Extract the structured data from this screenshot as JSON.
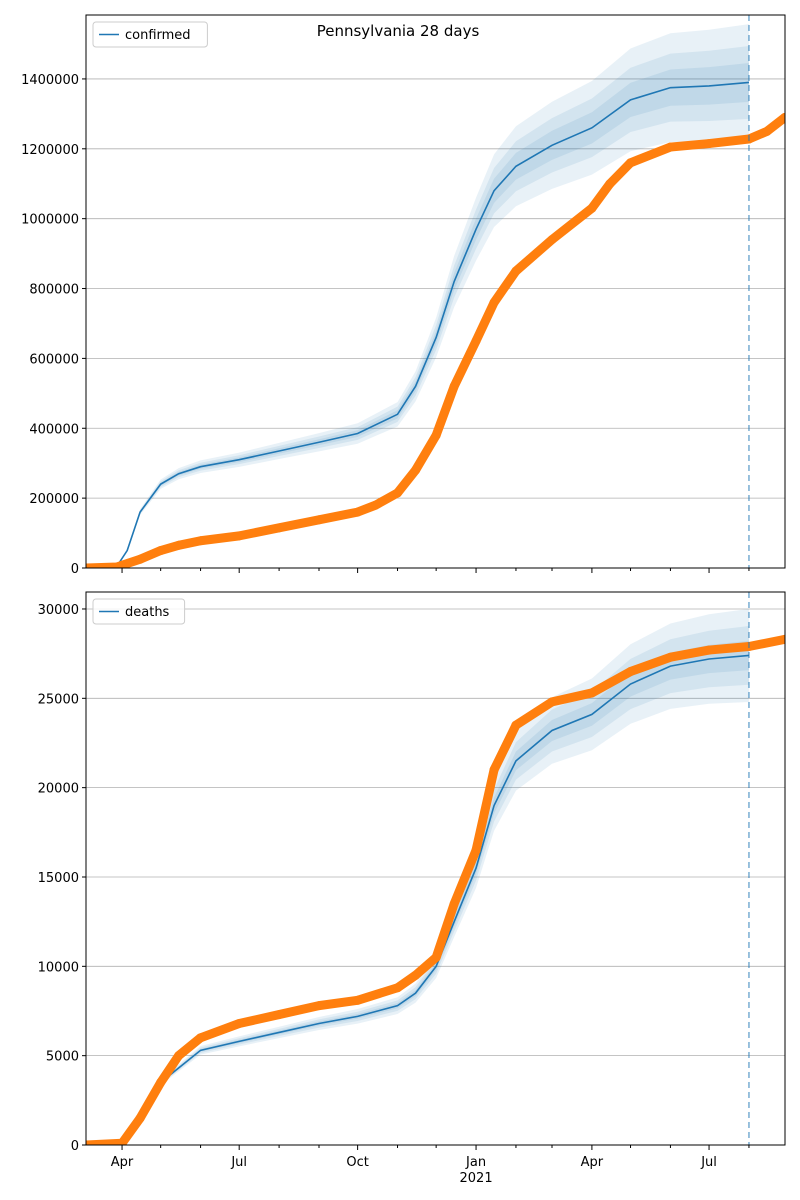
{
  "chart_data": [
    {
      "type": "line",
      "title": "Pennsylvania 28 days",
      "legend": {
        "label": "confirmed",
        "placement": "top-left"
      },
      "xlim": [
        "2020-03-04",
        "2021-08-29"
      ],
      "ylim": [
        0,
        1583000
      ],
      "yticks": [
        0,
        200000,
        400000,
        600000,
        800000,
        1000000,
        1200000,
        1400000
      ],
      "grid": "y",
      "forecast_date": "2021-08-01",
      "model_mean": {
        "x": [
          "2020-03-04",
          "2020-03-28",
          "2020-04-05",
          "2020-04-15",
          "2020-05-01",
          "2020-05-15",
          "2020-06-01",
          "2020-07-01",
          "2020-08-01",
          "2020-09-01",
          "2020-10-01",
          "2020-11-01",
          "2020-11-15",
          "2020-12-01",
          "2020-12-15",
          "2021-01-01",
          "2021-01-15",
          "2021-02-01",
          "2021-03-01",
          "2021-04-01",
          "2021-05-01",
          "2021-06-01",
          "2021-07-01",
          "2021-08-01"
        ],
        "y": [
          0,
          5000,
          50000,
          160000,
          240000,
          270000,
          290000,
          310000,
          335000,
          360000,
          385000,
          440000,
          520000,
          660000,
          820000,
          970000,
          1080000,
          1150000,
          1210000,
          1260000,
          1340000,
          1375000,
          1380000,
          1390000
        ]
      },
      "band_rel": [
        0.04,
        0.075,
        0.12
      ],
      "observed": {
        "x": [
          "2020-03-04",
          "2020-03-28",
          "2020-04-01",
          "2020-04-15",
          "2020-05-01",
          "2020-05-15",
          "2020-06-01",
          "2020-07-01",
          "2020-08-01",
          "2020-09-01",
          "2020-10-01",
          "2020-10-15",
          "2020-11-01",
          "2020-11-15",
          "2020-12-01",
          "2020-12-15",
          "2021-01-01",
          "2021-01-15",
          "2021-02-01",
          "2021-03-01",
          "2021-04-01",
          "2021-04-15",
          "2021-05-01",
          "2021-06-01",
          "2021-07-01",
          "2021-08-01",
          "2021-08-15",
          "2021-08-29"
        ],
        "y": [
          0,
          3000,
          8000,
          25000,
          50000,
          65000,
          78000,
          92000,
          115000,
          138000,
          160000,
          180000,
          215000,
          280000,
          380000,
          520000,
          650000,
          760000,
          850000,
          940000,
          1030000,
          1100000,
          1160000,
          1205000,
          1215000,
          1228000,
          1250000,
          1290000
        ]
      }
    },
    {
      "type": "line",
      "legend": {
        "label": "deaths",
        "placement": "top-left"
      },
      "xlim": [
        "2020-03-04",
        "2021-08-29"
      ],
      "ylim": [
        0,
        30950
      ],
      "yticks": [
        0,
        5000,
        10000,
        15000,
        20000,
        25000,
        30000
      ],
      "grid": "y",
      "forecast_date": "2021-08-01",
      "xticks": [
        {
          "date": "2020-04-01",
          "label": "Apr"
        },
        {
          "date": "2020-07-01",
          "label": "Jul"
        },
        {
          "date": "2020-10-01",
          "label": "Oct"
        },
        {
          "date": "2021-01-01",
          "label": "Jan",
          "sub": "2021"
        },
        {
          "date": "2021-04-01",
          "label": "Apr"
        },
        {
          "date": "2021-07-01",
          "label": "Jul"
        }
      ],
      "model_mean": {
        "x": [
          "2020-03-04",
          "2020-04-01",
          "2020-04-15",
          "2020-05-01",
          "2020-06-01",
          "2020-07-01",
          "2020-08-01",
          "2020-09-01",
          "2020-10-01",
          "2020-11-01",
          "2020-11-15",
          "2020-12-01",
          "2020-12-15",
          "2021-01-01",
          "2021-01-15",
          "2021-02-01",
          "2021-03-01",
          "2021-04-01",
          "2021-05-01",
          "2021-06-01",
          "2021-07-01",
          "2021-08-01"
        ],
        "y": [
          0,
          50,
          1500,
          3500,
          5300,
          5800,
          6300,
          6800,
          7200,
          7800,
          8500,
          10000,
          12500,
          15500,
          19000,
          21500,
          23200,
          24100,
          25800,
          26800,
          27200,
          27400
        ]
      },
      "band_rel": [
        0.03,
        0.06,
        0.095
      ],
      "observed": {
        "x": [
          "2020-03-04",
          "2020-04-01",
          "2020-04-15",
          "2020-05-01",
          "2020-05-15",
          "2020-06-01",
          "2020-07-01",
          "2020-08-01",
          "2020-09-01",
          "2020-10-01",
          "2020-11-01",
          "2020-11-15",
          "2020-12-01",
          "2020-12-15",
          "2021-01-01",
          "2021-01-15",
          "2021-02-01",
          "2021-03-01",
          "2021-04-01",
          "2021-05-01",
          "2021-06-01",
          "2021-07-01",
          "2021-08-01",
          "2021-08-29"
        ],
        "y": [
          0,
          100,
          1500,
          3500,
          5000,
          6000,
          6800,
          7300,
          7800,
          8100,
          8800,
          9500,
          10500,
          13500,
          16500,
          21000,
          23500,
          24800,
          25300,
          26500,
          27300,
          27700,
          27900,
          28300
        ]
      }
    }
  ]
}
